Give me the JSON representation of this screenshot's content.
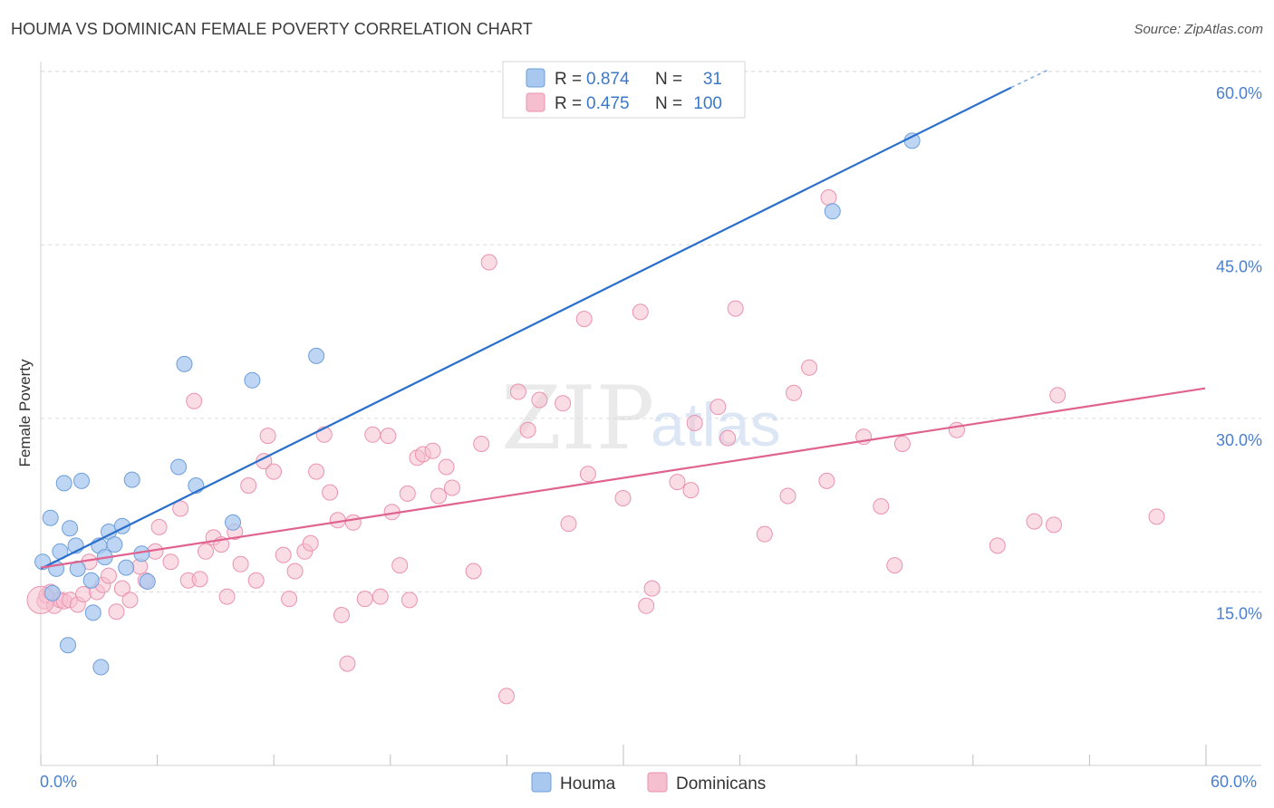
{
  "title": "HOUMA VS DOMINICAN FEMALE POVERTY CORRELATION CHART",
  "source": "Source: ZipAtlas.com",
  "watermark": {
    "zip": "ZIP",
    "atlas": "atlas"
  },
  "colors": {
    "houma_fill": "#a8c8f0",
    "houma_stroke": "#6e9fd9",
    "houma_line": "#2a6fcc",
    "dominican_fill": "#f6bfd0",
    "dominican_stroke": "#eb92b0",
    "dominican_line": "#e0638f",
    "grid": "#dcdcdc",
    "tick_label": "#4a7fd0"
  },
  "legend": {
    "rows": [
      {
        "r_label": "R =",
        "r_value": "0.874",
        "n_label": "N =",
        "n_value": "31"
      },
      {
        "r_label": "R =",
        "r_value": "0.475",
        "n_label": "N =",
        "n_value": "100"
      }
    ]
  },
  "bottom_legend": [
    "Houma",
    "Dominicans"
  ],
  "chart_data": {
    "type": "scatter",
    "title": "HOUMA VS DOMINICAN FEMALE POVERTY CORRELATION CHART",
    "xlabel": "",
    "ylabel": "Female Poverty",
    "xlim": [
      0,
      60
    ],
    "ylim": [
      0,
      63
    ],
    "x_tick_labels": [
      "0.0%",
      "60.0%"
    ],
    "y_ticks": [
      15,
      30,
      45,
      60
    ],
    "y_tick_labels": [
      "15.0%",
      "30.0%",
      "45.0%",
      "60.0%"
    ],
    "grid": true,
    "legend_position": "top-center",
    "series": [
      {
        "name": "Houma",
        "r": 0.874,
        "n": 31,
        "trend": {
          "x0": 0,
          "y0": 17.0,
          "x1": 50.0,
          "y1": 58.6,
          "dashed_to_x": 52.0,
          "dashed_to_y": 60.2
        },
        "points": [
          [
            0.1,
            17.6
          ],
          [
            0.5,
            21.4
          ],
          [
            0.6,
            14.9
          ],
          [
            0.8,
            17.0
          ],
          [
            1.0,
            18.5
          ],
          [
            1.2,
            24.4
          ],
          [
            1.4,
            10.4
          ],
          [
            1.5,
            20.5
          ],
          [
            1.8,
            19.0
          ],
          [
            1.9,
            17.0
          ],
          [
            2.1,
            24.6
          ],
          [
            2.6,
            16.0
          ],
          [
            2.7,
            13.2
          ],
          [
            3.0,
            19.0
          ],
          [
            3.1,
            8.5
          ],
          [
            3.3,
            18.0
          ],
          [
            3.5,
            20.2
          ],
          [
            3.8,
            19.1
          ],
          [
            4.2,
            20.7
          ],
          [
            4.4,
            17.1
          ],
          [
            4.7,
            24.7
          ],
          [
            5.2,
            18.3
          ],
          [
            5.5,
            15.9
          ],
          [
            7.1,
            25.8
          ],
          [
            7.4,
            34.7
          ],
          [
            8.0,
            24.2
          ],
          [
            9.9,
            21.0
          ],
          [
            10.9,
            33.3
          ],
          [
            14.2,
            35.4
          ],
          [
            40.8,
            47.9
          ],
          [
            44.9,
            54.0
          ]
        ]
      },
      {
        "name": "Dominicans",
        "r": 0.475,
        "n": 100,
        "trend": {
          "x0": 0,
          "y0": 17.1,
          "x1": 60,
          "y1": 32.6
        },
        "points": [
          [
            0.2,
            14.2
          ],
          [
            0.3,
            14.7
          ],
          [
            0.5,
            15.0
          ],
          [
            0.7,
            13.8
          ],
          [
            1.0,
            14.3
          ],
          [
            1.2,
            14.2
          ],
          [
            1.5,
            14.3
          ],
          [
            1.9,
            13.9
          ],
          [
            2.2,
            14.8
          ],
          [
            2.5,
            17.6
          ],
          [
            2.9,
            15.0
          ],
          [
            3.2,
            15.6
          ],
          [
            3.5,
            16.4
          ],
          [
            3.9,
            13.3
          ],
          [
            4.2,
            15.3
          ],
          [
            4.6,
            14.3
          ],
          [
            5.1,
            17.2
          ],
          [
            5.4,
            16.0
          ],
          [
            5.9,
            18.5
          ],
          [
            6.1,
            20.6
          ],
          [
            6.7,
            17.6
          ],
          [
            7.2,
            22.2
          ],
          [
            7.6,
            16.0
          ],
          [
            7.9,
            31.5
          ],
          [
            8.2,
            16.1
          ],
          [
            8.5,
            18.5
          ],
          [
            8.9,
            19.7
          ],
          [
            9.3,
            19.1
          ],
          [
            9.6,
            14.6
          ],
          [
            10.0,
            20.2
          ],
          [
            10.3,
            17.4
          ],
          [
            10.7,
            24.2
          ],
          [
            11.1,
            16.0
          ],
          [
            11.5,
            26.3
          ],
          [
            11.7,
            28.5
          ],
          [
            12.0,
            25.4
          ],
          [
            12.5,
            18.2
          ],
          [
            12.8,
            14.4
          ],
          [
            13.1,
            16.8
          ],
          [
            13.6,
            18.5
          ],
          [
            13.9,
            19.2
          ],
          [
            14.2,
            25.4
          ],
          [
            14.6,
            28.6
          ],
          [
            14.9,
            23.6
          ],
          [
            15.3,
            21.2
          ],
          [
            15.5,
            13.0
          ],
          [
            15.8,
            8.8
          ],
          [
            16.1,
            21.0
          ],
          [
            16.7,
            14.4
          ],
          [
            17.1,
            28.6
          ],
          [
            17.5,
            14.6
          ],
          [
            17.9,
            28.5
          ],
          [
            18.1,
            21.9
          ],
          [
            18.5,
            17.3
          ],
          [
            18.9,
            23.5
          ],
          [
            19.0,
            14.3
          ],
          [
            19.4,
            26.6
          ],
          [
            19.7,
            26.9
          ],
          [
            20.2,
            27.2
          ],
          [
            20.5,
            23.3
          ],
          [
            20.9,
            25.8
          ],
          [
            21.2,
            24.0
          ],
          [
            22.3,
            16.8
          ],
          [
            22.7,
            27.8
          ],
          [
            23.1,
            43.5
          ],
          [
            24.0,
            6.0
          ],
          [
            24.6,
            32.3
          ],
          [
            25.1,
            29.0
          ],
          [
            25.7,
            31.6
          ],
          [
            26.9,
            31.3
          ],
          [
            27.2,
            20.9
          ],
          [
            28.0,
            38.6
          ],
          [
            28.2,
            25.2
          ],
          [
            30.0,
            23.1
          ],
          [
            30.9,
            39.2
          ],
          [
            31.2,
            13.8
          ],
          [
            31.5,
            15.3
          ],
          [
            32.8,
            24.5
          ],
          [
            33.5,
            23.8
          ],
          [
            33.7,
            29.6
          ],
          [
            34.9,
            31.0
          ],
          [
            35.4,
            28.3
          ],
          [
            35.8,
            39.5
          ],
          [
            37.3,
            20.0
          ],
          [
            38.5,
            23.3
          ],
          [
            38.8,
            32.2
          ],
          [
            39.6,
            34.4
          ],
          [
            40.5,
            24.6
          ],
          [
            40.6,
            49.1
          ],
          [
            42.4,
            28.4
          ],
          [
            43.3,
            22.4
          ],
          [
            44.0,
            17.3
          ],
          [
            44.4,
            27.8
          ],
          [
            47.2,
            29.0
          ],
          [
            49.3,
            19.0
          ],
          [
            51.2,
            21.1
          ],
          [
            52.2,
            20.8
          ],
          [
            52.4,
            32.0
          ],
          [
            57.5,
            21.5
          ],
          [
            0.0,
            14.3
          ]
        ]
      }
    ]
  }
}
